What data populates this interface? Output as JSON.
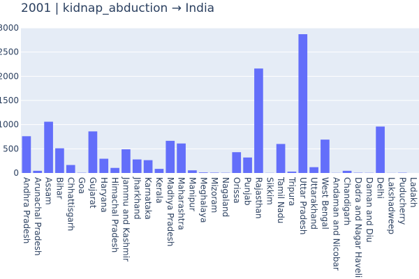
{
  "chart_data": {
    "type": "bar",
    "title": "2001 | kidnap_abduction → India",
    "xlabel": "",
    "ylabel": "",
    "ylim": [
      0,
      3000
    ],
    "yticks": [
      "0",
      "500",
      "1000",
      "1500",
      "2000",
      "2500",
      "3000"
    ],
    "grid": true,
    "legend": "none",
    "colors": {
      "bar": "#636efa",
      "plot_bg": "#e5ecf6",
      "grid": "#ffffff",
      "text": "#2a3f5f"
    },
    "categories": [
      "Andhra Pradesh",
      "Arunachal Pradesh",
      "Assam",
      "Bihar",
      "Chhattisgarh",
      "Goa",
      "Gujarat",
      "Haryana",
      "Himachal Pradesh",
      "Jammu and Kashmir",
      "Jharkhand",
      "Karnataka",
      "Kerala",
      "Madhya Pradesh",
      "Maharashtra",
      "Manipur",
      "Meghalaya",
      "Mizoram",
      "Nagaland",
      "Orissa",
      "Punjab",
      "Rajasthan",
      "Sikkim",
      "Tamil Nadu",
      "Tripura",
      "Uttar Pradesh",
      "Uttarakhand",
      "West Bengal",
      "Andaman and Nicobar",
      "Chandigarh",
      "Dadra and Nagar Haveli",
      "Daman and Diu",
      "Delhi",
      "Lakshadweep",
      "Puducherry",
      "Ladakh"
    ],
    "values": [
      760,
      45,
      1060,
      510,
      165,
      5,
      860,
      295,
      105,
      490,
      280,
      265,
      85,
      665,
      610,
      55,
      12,
      8,
      5,
      430,
      320,
      2160,
      3,
      600,
      28,
      2870,
      120,
      690,
      3,
      45,
      6,
      4,
      960,
      2,
      6,
      0
    ]
  }
}
